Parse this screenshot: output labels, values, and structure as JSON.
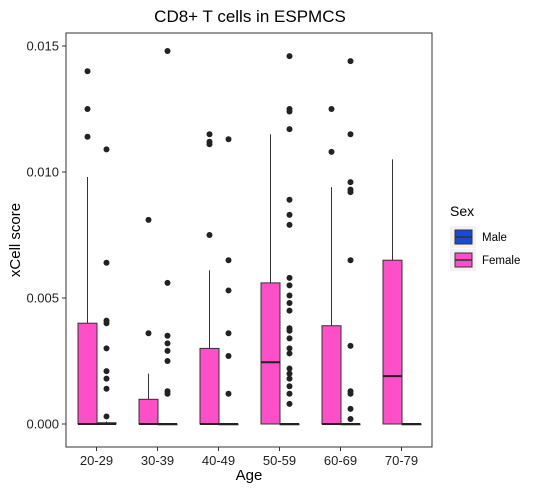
{
  "chart_data": {
    "type": "boxplot",
    "title": "CD8+ T cells in ESPMCS",
    "xlabel": "Age",
    "ylabel": "xCell score",
    "ylim": [
      -0.0007,
      0.0155
    ],
    "yticks": [
      0.0,
      0.005,
      0.01,
      0.015
    ],
    "ytick_labels": [
      "0.000",
      "0.005",
      "0.010",
      "0.015"
    ],
    "grid": false,
    "legend": {
      "title": "Sex",
      "position": "right"
    },
    "categories": [
      "20-29",
      "30-39",
      "40-49",
      "50-59",
      "60-69",
      "70-79"
    ],
    "series": [
      {
        "name": "Male",
        "color": "#1a49d6",
        "boxes": [
          {
            "category": "20-29",
            "q1": 0.0,
            "median": 0.0,
            "q3": 5e-05,
            "whisker_low": 0.0,
            "whisker_high": 0.0001,
            "outliers": [
              0.0109,
              0.0064,
              0.0041,
              0.004,
              0.003,
              0.0021,
              0.0018,
              0.0014,
              0.0003
            ]
          },
          {
            "category": "30-39",
            "q1": 0.0,
            "median": 0.0,
            "q3": 0.0,
            "whisker_low": 0.0,
            "whisker_high": 0.0,
            "outliers": [
              0.0148,
              0.0056,
              0.0035,
              0.0032,
              0.0029,
              0.0025,
              0.0013,
              0.0012
            ]
          },
          {
            "category": "40-49",
            "q1": 0.0,
            "median": 0.0,
            "q3": 0.0,
            "whisker_low": 0.0,
            "whisker_high": 0.0,
            "outliers": [
              0.0113,
              0.0065,
              0.0053,
              0.0036,
              0.0027,
              0.0012
            ]
          },
          {
            "category": "50-59",
            "q1": 0.0,
            "median": 0.0,
            "q3": 0.0,
            "whisker_low": 0.0,
            "whisker_high": 0.0,
            "outliers": [
              0.0146,
              0.0125,
              0.0124,
              0.0117,
              0.0089,
              0.0083,
              0.0079,
              0.0058,
              0.0055,
              0.0051,
              0.0048,
              0.0045,
              0.0038,
              0.0037,
              0.0034,
              0.003,
              0.0028,
              0.0022,
              0.002,
              0.0018,
              0.0015,
              0.0012,
              0.0008
            ]
          },
          {
            "category": "60-69",
            "q1": 0.0,
            "median": 0.0,
            "q3": 0.0,
            "whisker_low": 0.0,
            "whisker_high": 0.0,
            "outliers": [
              0.0144,
              0.0115,
              0.0096,
              0.0093,
              0.0092,
              0.0065,
              0.0031,
              0.0013,
              0.0012,
              0.0006,
              0.0002
            ]
          },
          {
            "category": "70-79",
            "q1": 0.0,
            "median": 0.0,
            "q3": 0.0,
            "whisker_low": 0.0,
            "whisker_high": 0.0,
            "outliers": []
          }
        ]
      },
      {
        "name": "Female",
        "color": "#ff4fc8",
        "boxes": [
          {
            "category": "20-29",
            "q1": 0.0,
            "median": 0.0,
            "q3": 0.004,
            "whisker_low": 0.0,
            "whisker_high": 0.0098,
            "outliers": [
              0.014,
              0.0125,
              0.0114
            ]
          },
          {
            "category": "30-39",
            "q1": 0.0,
            "median": 0.0,
            "q3": 0.00098,
            "whisker_low": 0.0,
            "whisker_high": 0.002,
            "outliers": [
              0.0081,
              0.0036
            ]
          },
          {
            "category": "40-49",
            "q1": 0.0,
            "median": 0.0,
            "q3": 0.003,
            "whisker_low": 0.0,
            "whisker_high": 0.0061,
            "outliers": [
              0.0115,
              0.0112,
              0.0111,
              0.0075
            ]
          },
          {
            "category": "50-59",
            "q1": 0.0,
            "median": 0.00245,
            "q3": 0.0056,
            "whisker_low": 0.0,
            "whisker_high": 0.0115,
            "outliers": []
          },
          {
            "category": "60-69",
            "q1": 0.0,
            "median": 0.0,
            "q3": 0.0039,
            "whisker_low": 0.0,
            "whisker_high": 0.0094,
            "outliers": [
              0.0125,
              0.0108
            ]
          },
          {
            "category": "70-79",
            "q1": 0.0,
            "median": 0.0019,
            "q3": 0.0065,
            "whisker_low": 0.0,
            "whisker_high": 0.0105,
            "outliers": []
          }
        ]
      }
    ]
  }
}
